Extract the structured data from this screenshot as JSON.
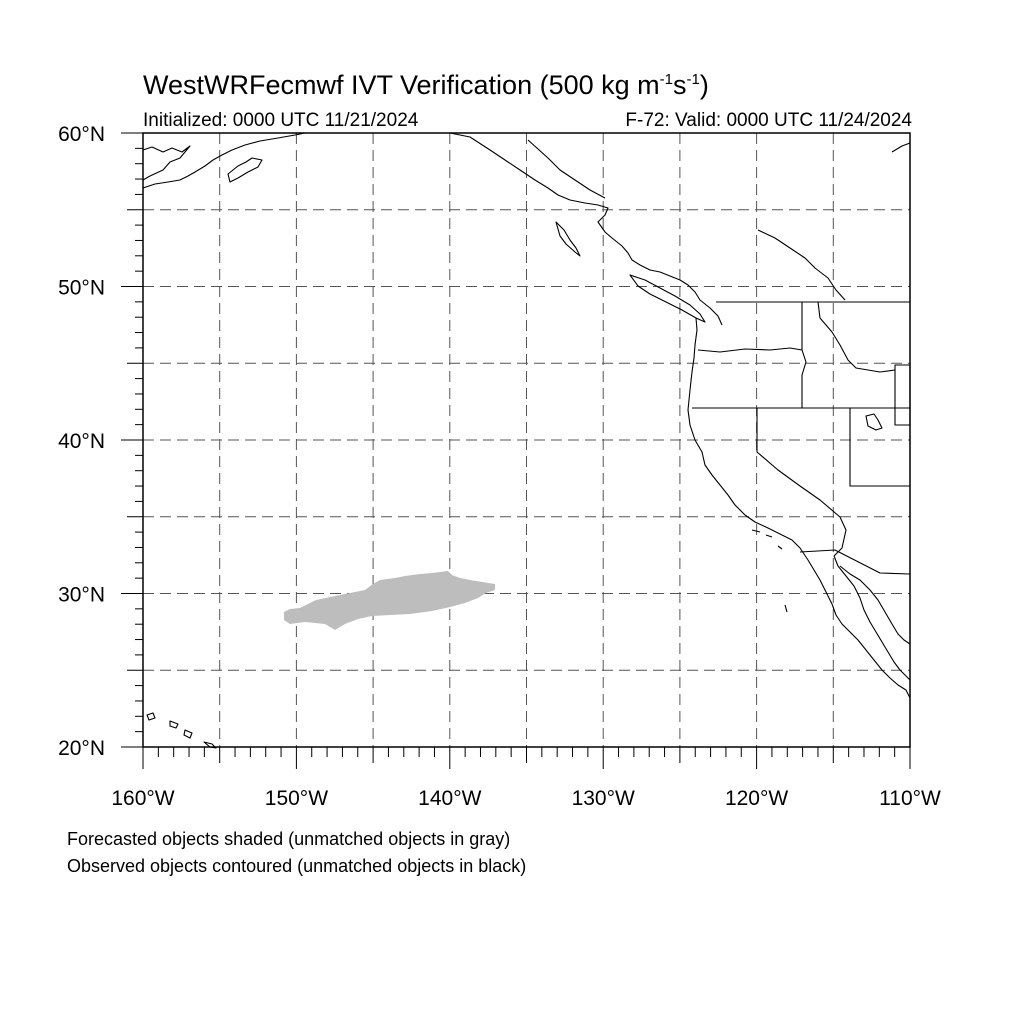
{
  "header": {
    "title_main": "WestWRFecmwf IVT Verification (500 kg m",
    "title_unit_exp1": "-1",
    "title_unit_mid": "s",
    "title_unit_exp2": "-1",
    "title_close": ")",
    "initialized": "Initialized: 0000 UTC 11/21/2024",
    "valid": "F-72: Valid: 0000 UTC 11/24/2024"
  },
  "axes": {
    "lat_labels": [
      "60°N",
      "50°N",
      "40°N",
      "30°N",
      "20°N"
    ],
    "lat_values": [
      60,
      50,
      40,
      30,
      20
    ],
    "lon_labels": [
      "160°W",
      "150°W",
      "140°W",
      "130°W",
      "120°W",
      "110°W"
    ],
    "lon_values": [
      -160,
      -150,
      -140,
      -130,
      -120,
      -110
    ],
    "lat_range": [
      20,
      60
    ],
    "lon_range": [
      -160,
      -110
    ],
    "gridline_step_deg": 5,
    "gridlines": true,
    "gridline_style": "dashed"
  },
  "map_layers": {
    "forecast_object_color": "#bdbdbd",
    "coastline_color": "#000000",
    "border_color": "#000000"
  },
  "notes": {
    "line1": "Forecasted objects shaded (unmatched objects in gray)",
    "line2": "Observed objects contoured (unmatched objects in black)"
  }
}
